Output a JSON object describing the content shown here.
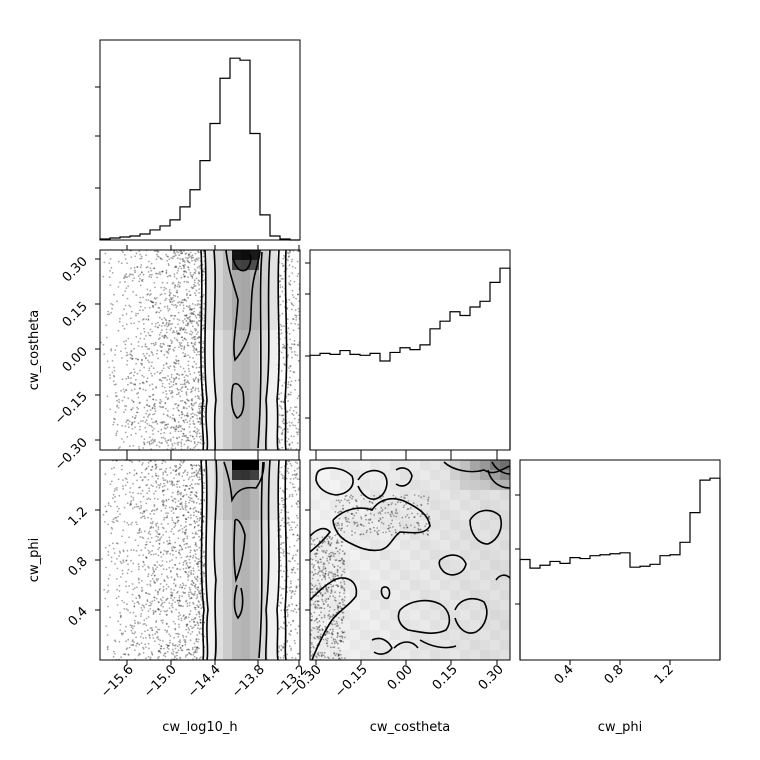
{
  "chart_data": {
    "type": "corner",
    "parameters": [
      "cw_log10_h",
      "cw_costheta",
      "cw_phi"
    ],
    "ranges": {
      "cw_log10_h": [
        -15.95,
        -13.2
      ],
      "cw_costheta": [
        -0.33,
        0.33
      ],
      "cw_phi": [
        0.0,
        1.6
      ]
    },
    "ticks": {
      "cw_log10_h": [
        "−15.6",
        "−15.0",
        "−14.4",
        "−13.8",
        "−13.2"
      ],
      "cw_costheta": [
        "−0.30",
        "−0.15",
        "0.00",
        "0.15",
        "0.30"
      ],
      "cw_phi": [
        "0.4",
        "0.8",
        "1.2"
      ]
    },
    "histograms": {
      "cw_log10_h": {
        "bin_edges": [
          -15.95,
          -15.8125,
          -15.675,
          -15.5375,
          -15.4,
          -15.2625,
          -15.125,
          -14.9875,
          -14.85,
          -14.7125,
          -14.575,
          -14.4375,
          -14.3,
          -14.1625,
          -14.025,
          -13.8875,
          -13.75,
          -13.6125,
          -13.475,
          -13.3375,
          -13.2
        ],
        "counts": [
          1,
          2,
          3,
          4,
          6,
          10,
          14,
          20,
          33,
          50,
          79,
          116,
          161,
          181,
          179,
          106,
          25,
          4,
          1,
          0
        ]
      },
      "cw_costheta": {
        "bin_edges": [
          -0.33,
          -0.297,
          -0.264,
          -0.231,
          -0.198,
          -0.165,
          -0.132,
          -0.099,
          -0.066,
          -0.033,
          0.0,
          0.033,
          0.066,
          0.099,
          0.132,
          0.165,
          0.198,
          0.231,
          0.264,
          0.297,
          0.33
        ],
        "counts": [
          100,
          102,
          101,
          105,
          101,
          100,
          102,
          94,
          103,
          108,
          106,
          111,
          128,
          136,
          146,
          142,
          151,
          157,
          177,
          192
        ]
      },
      "cw_phi": {
        "bin_edges": [
          0.0,
          0.08,
          0.16,
          0.24,
          0.32,
          0.4,
          0.48,
          0.56,
          0.64,
          0.72,
          0.8,
          0.88,
          0.96,
          1.04,
          1.12,
          1.2,
          1.28,
          1.36,
          1.44,
          1.52,
          1.6
        ],
        "counts": [
          105,
          96,
          99,
          103,
          101,
          107,
          106,
          109,
          110,
          111,
          112,
          97,
          98,
          100,
          109,
          110,
          123,
          154,
          188,
          190
        ]
      }
    },
    "panels": [
      {
        "x": "cw_log10_h",
        "y": "cw_costheta",
        "kind": "2d-density-contour"
      },
      {
        "x": "cw_log10_h",
        "y": "cw_phi",
        "kind": "2d-density-contour"
      },
      {
        "x": "cw_costheta",
        "y": "cw_phi",
        "kind": "2d-density-contour"
      }
    ],
    "grid": false,
    "color": "#000000"
  }
}
